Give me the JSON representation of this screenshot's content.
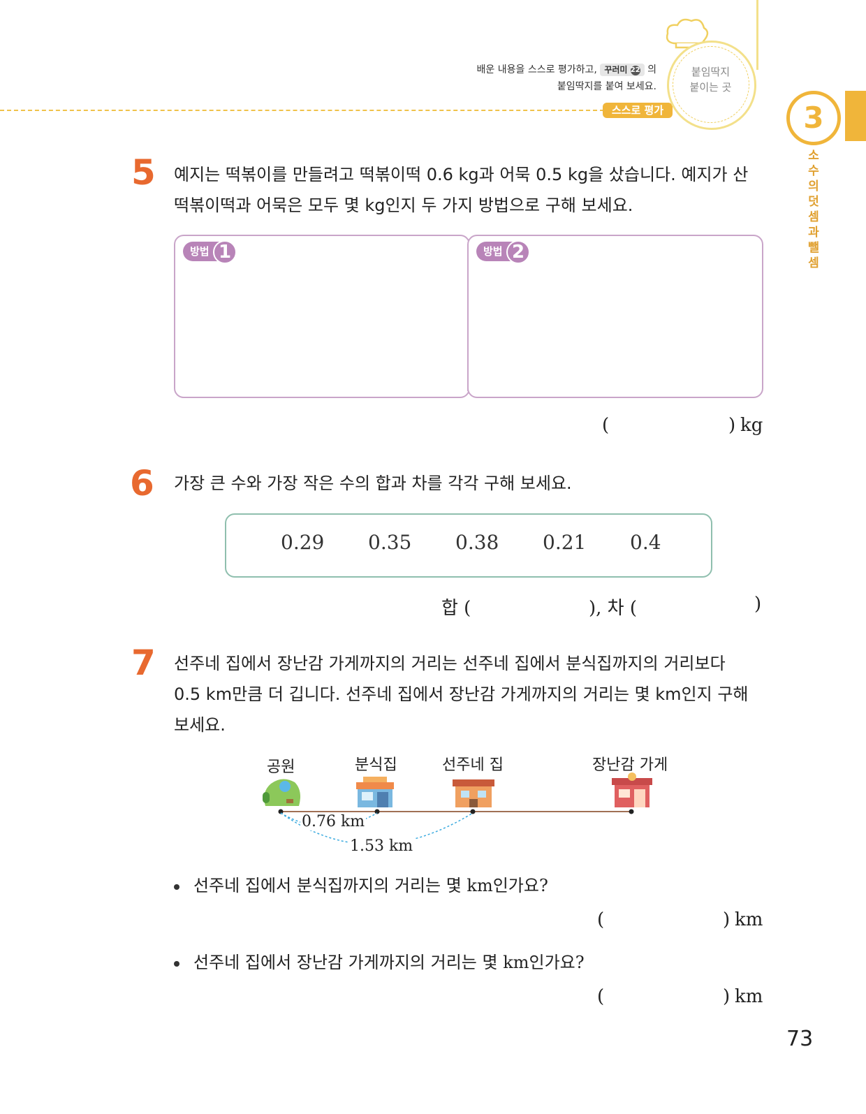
{
  "header": {
    "line1_before": "배운 내용을 스스로 평가하고,",
    "chip_label": "꾸러미",
    "chip_number": "22",
    "line1_after": "의",
    "line2": "붙임딱지를 붙여 보세요.",
    "self_eval": "스스로 평가",
    "sticker_line1": "붙임딱지",
    "sticker_line2": "붙이는 곳"
  },
  "chapter": {
    "number": "3",
    "title": "소수의 덧셈과 뺄셈"
  },
  "problem5": {
    "number": "5",
    "text_line1": "예지는 떡볶이를 만들려고 떡볶이떡 0.6 kg과 어묵 0.5 kg을 샀습니다. 예지가 산",
    "text_line2": "떡볶이떡과 어묵은 모두 몇 kg인지 두 가지 방법으로 구해 보세요.",
    "method1_label": "방법",
    "method1_num": "1",
    "method2_label": "방법",
    "method2_num": "2",
    "answer_open": "(",
    "answer_close": ")",
    "answer_unit": "kg"
  },
  "problem6": {
    "number": "6",
    "text": "가장 큰 수와 가장 작은 수의 합과 차를 각각 구해 보세요.",
    "numbers": [
      "0.29",
      "0.35",
      "0.38",
      "0.21",
      "0.4"
    ],
    "sum_label": "합 (",
    "mid": "), 차 (",
    "close": ")"
  },
  "problem7": {
    "number": "7",
    "text_line1": "선주네 집에서 장난감 가게까지의 거리는 선주네 집에서 분식집까지의 거리보다",
    "text_line2": "0.5 km만큼 더 깁니다. 선주네 집에서 장난감 가게까지의 거리는 몇 km인지 구해",
    "text_line3": "보세요.",
    "places": [
      "공원",
      "분식집",
      "선주네 집",
      "장난감 가게"
    ],
    "dist1": "0.76 km",
    "dist2": "1.53 km",
    "q1": "선주네 집에서 분식집까지의 거리는 몇 km인가요?",
    "q2": "선주네 집에서 장난감 가게까지의 거리는 몇 km인가요?",
    "answer_open": "(",
    "answer_close": ")",
    "answer_unit": "km"
  },
  "page_number": "73",
  "colors": {
    "accent_orange": "#e8692f",
    "accent_yellow": "#f0b53a",
    "method_purple": "#b884b8",
    "box_green": "#8fbfae"
  }
}
